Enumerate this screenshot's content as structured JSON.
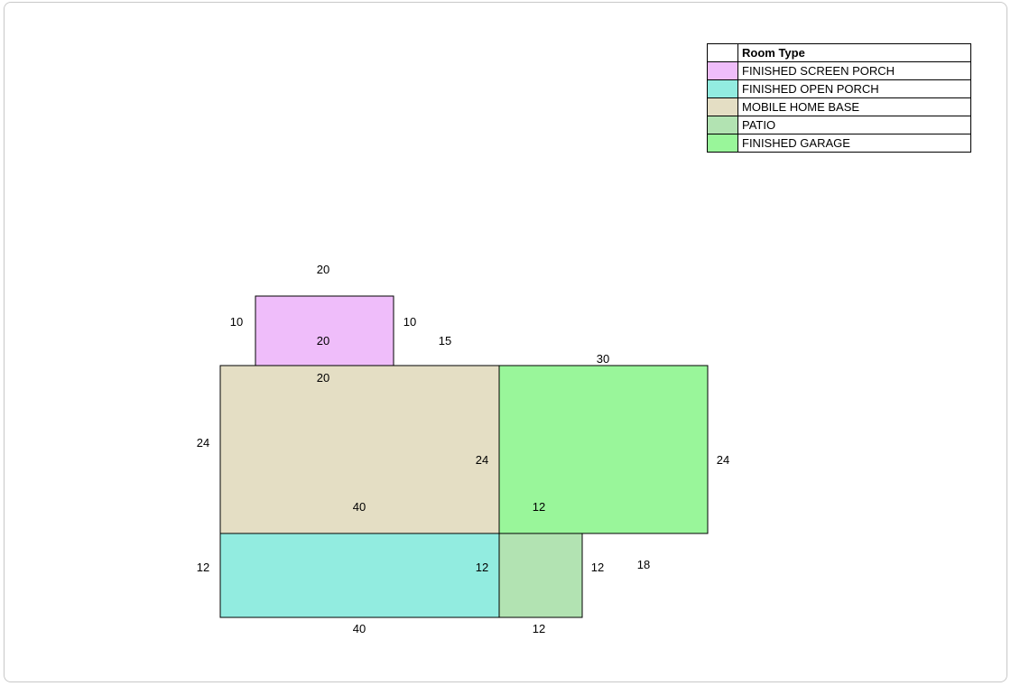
{
  "legend": {
    "header": "Room Type",
    "items": [
      {
        "label": "FINISHED SCREEN PORCH",
        "color": "#efbdfa"
      },
      {
        "label": "FINISHED OPEN PORCH",
        "color": "#92ece0"
      },
      {
        "label": "MOBILE HOME BASE",
        "color": "#e4dec4"
      },
      {
        "label": "PATIO",
        "color": "#b2e3b2"
      },
      {
        "label": "FINISHED GARAGE",
        "color": "#99f69a"
      }
    ]
  },
  "rooms": [
    {
      "type": "FINISHED SCREEN PORCH",
      "color": "#efbdfa",
      "width": 20,
      "depth": 10
    },
    {
      "type": "MOBILE HOME BASE",
      "color": "#e4dec4",
      "width": 40,
      "depth": 24
    },
    {
      "type": "FINISHED GARAGE",
      "color": "#99f69a",
      "width": 30,
      "depth": 24
    },
    {
      "type": "FINISHED OPEN PORCH",
      "color": "#92ece0",
      "width": 40,
      "depth": 12
    },
    {
      "type": "PATIO",
      "color": "#b2e3b2",
      "width": 12,
      "depth": 12
    }
  ],
  "dimension_labels": {
    "porch_top": "20",
    "porch_left": "10",
    "porch_right": "10",
    "porch_inner": "20",
    "offset_15": "15",
    "base_top": "20",
    "garage_top": "30",
    "base_left": "24",
    "base_right": "24",
    "garage_right": "24",
    "base_bottom": "40",
    "garage_bottom": "12",
    "open_left": "12",
    "open_right": "12",
    "patio_right": "12",
    "offset_18": "18",
    "open_bottom": "40",
    "patio_bottom": "12"
  }
}
